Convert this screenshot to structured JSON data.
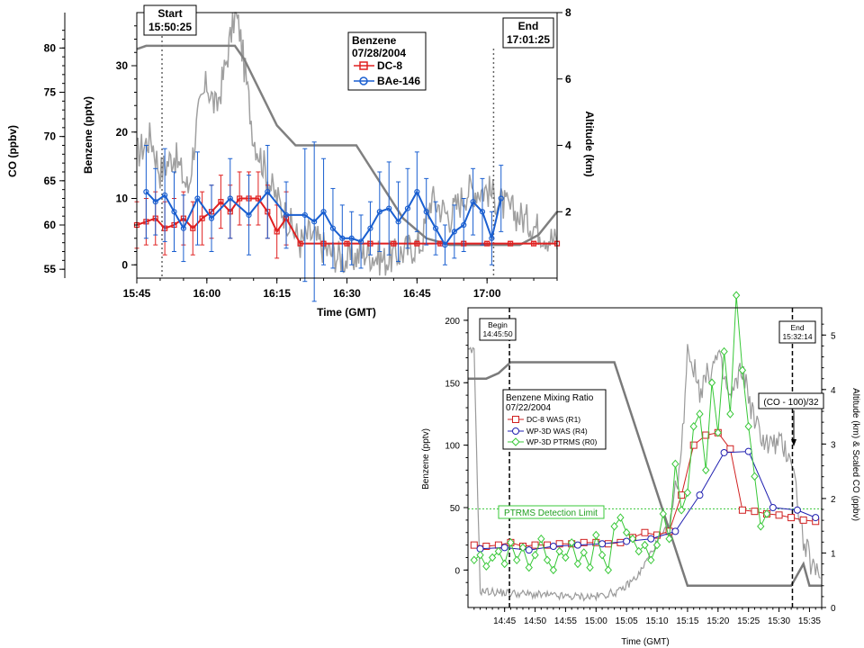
{
  "chart_data": [
    {
      "type": "line",
      "xlabel": "Time (GMT)",
      "ylabel_left_outer": "CO (ppbv)",
      "ylabel_left": "Benzene (pptv)",
      "ylabel_right": "Altitude (km)",
      "x_ticks": [
        "15:45",
        "16:00",
        "16:15",
        "16:30",
        "16:45",
        "17:00"
      ],
      "xlim_minutes": [
        945,
        1035
      ],
      "co_ticks": [
        "80",
        "75",
        "70",
        "65",
        "60",
        "55"
      ],
      "co_ylim": [
        54,
        84
      ],
      "benzene_ticks": [
        "0",
        "10",
        "20",
        "30"
      ],
      "benzene_ylim": [
        -2,
        38
      ],
      "altitude_ticks": [
        "2",
        "4",
        "6",
        "8"
      ],
      "altitude_ylim": [
        0,
        8
      ],
      "legend": {
        "title": "Benzene",
        "date": "07/28/2004",
        "entries": [
          "DC-8",
          "BAe-146"
        ]
      },
      "annotations": [
        {
          "title": "Start",
          "time": "15:50:25",
          "x_min": 950.4
        },
        {
          "title": "End",
          "time": "17:01:25",
          "x_min": 1021.4
        }
      ],
      "series": [
        {
          "name": "DC-8",
          "color": "#e02020",
          "marker": "square",
          "x": [
            945,
            947,
            949,
            951,
            953,
            955,
            957,
            959,
            961,
            963,
            965,
            967,
            969,
            971,
            973,
            975,
            977,
            980,
            985,
            990,
            995,
            1000,
            1005,
            1010,
            1015,
            1020,
            1025,
            1030,
            1035
          ],
          "y": [
            6,
            6.5,
            7,
            5.5,
            6,
            7,
            5.5,
            7,
            8,
            9.5,
            8,
            10,
            10,
            10,
            8,
            5,
            7,
            3.2,
            3.2,
            3.2,
            3.2,
            3.2,
            3.2,
            3.2,
            3.2,
            3.2,
            3.2,
            3.2,
            3.2
          ],
          "err": [
            3.5,
            3.5,
            4,
            4,
            4,
            4,
            4,
            4,
            4,
            4,
            4,
            4,
            4,
            4,
            4,
            4,
            4,
            0.3,
            0.3,
            0.3,
            0.3,
            0.3,
            0.3,
            0.3,
            0.3,
            0.3,
            0.3,
            0.3,
            0.3
          ]
        },
        {
          "name": "BAe-146",
          "color": "#1a5fd0",
          "marker": "circle",
          "x": [
            947,
            949,
            951,
            953,
            955,
            958,
            961,
            965,
            969,
            973,
            977,
            981,
            983,
            985,
            987,
            989,
            991,
            993,
            995,
            997,
            999,
            1001,
            1003,
            1005,
            1007,
            1009,
            1011,
            1013,
            1015,
            1017,
            1019,
            1021,
            1023
          ],
          "y": [
            11,
            9.5,
            10.5,
            8,
            5.5,
            10,
            7,
            10,
            7.5,
            11,
            7.5,
            7.5,
            6.5,
            8,
            5.5,
            4,
            4,
            3.5,
            5.5,
            8,
            8.5,
            6.5,
            8.5,
            11,
            8,
            5.5,
            3,
            5,
            6,
            9.5,
            8,
            4,
            10
          ],
          "err": [
            7,
            5,
            7,
            6,
            5,
            7,
            5,
            6,
            6,
            7,
            5,
            10,
            12,
            8,
            6,
            5,
            4,
            4,
            4,
            6,
            7,
            6,
            6,
            6,
            5,
            4,
            3,
            4,
            4,
            5,
            5,
            4,
            5
          ]
        }
      ]
    },
    {
      "type": "line",
      "xlabel": "Time (GMT)",
      "ylabel_left": "Benzene (pptv)",
      "ylabel_right": "Altitude (km) & Scaled CO (ppbv)",
      "x_ticks": [
        "14:45",
        "14:50",
        "14:55",
        "15:00",
        "15:05",
        "15:10",
        "15:15",
        "15:20",
        "15:25",
        "15:30",
        "15:35"
      ],
      "xlim_minutes": [
        879,
        937
      ],
      "y_ticks": [
        "0",
        "50",
        "100",
        "150",
        "200"
      ],
      "ylim": [
        -30,
        210
      ],
      "alt_ticks": [
        "0",
        "1",
        "2",
        "3",
        "4",
        "5"
      ],
      "alt_ylim": [
        0,
        5.5
      ],
      "legend": {
        "title": "Benzene Mixing Ratio",
        "date": "07/22/2004",
        "entries": [
          "DC-8 WAS (R1)",
          "WP-3D WAS (R4)",
          "WP-3D PTRMS (R0)"
        ]
      },
      "annotations": [
        {
          "title": "Begin",
          "time": "14:45:50",
          "x_min": 885.8
        },
        {
          "title": "End",
          "time": "15:32:14",
          "x_min": 932.2
        },
        {
          "label": "(CO - 100)/32"
        },
        {
          "label": "PTRMS Detection Limit",
          "y": 49
        }
      ],
      "series": [
        {
          "name": "DC-8 WAS (R1)",
          "color": "#d02020",
          "marker": "square",
          "x": [
            880,
            882,
            884,
            886,
            888,
            890,
            892,
            894,
            896,
            898,
            900,
            902,
            904,
            906,
            908,
            910,
            912,
            914,
            916,
            918,
            920,
            922,
            924,
            926,
            928,
            930,
            932,
            934,
            936
          ],
          "y": [
            20,
            19,
            20,
            22,
            19,
            20,
            20,
            21,
            21,
            22,
            22,
            21,
            22,
            26,
            30,
            28,
            31,
            60,
            100,
            108,
            110,
            97,
            48,
            47,
            45,
            44,
            42,
            40,
            39
          ]
        },
        {
          "name": "WP-3D WAS (R4)",
          "color": "#2020b0",
          "marker": "circle",
          "x": [
            881,
            885,
            889,
            893,
            897,
            901,
            905,
            909,
            913,
            917,
            921,
            925,
            929,
            933,
            936
          ],
          "y": [
            17,
            18,
            16,
            19,
            20,
            21,
            23,
            25,
            31,
            60,
            94,
            95,
            50,
            48,
            42
          ]
        },
        {
          "name": "WP-3D PTRMS (R0)",
          "color": "#38c838",
          "marker": "diamond",
          "x": [
            880,
            881,
            882,
            883,
            884,
            885,
            886,
            887,
            888,
            889,
            890,
            891,
            892,
            893,
            894,
            895,
            896,
            897,
            898,
            899,
            900,
            901,
            902,
            903,
            904,
            905,
            906,
            907,
            908,
            909,
            910,
            911,
            912,
            913,
            914,
            915,
            916,
            917,
            918,
            919,
            920,
            921,
            922,
            923,
            924,
            925,
            926,
            927,
            928
          ],
          "y": [
            8,
            12,
            3,
            10,
            15,
            5,
            22,
            8,
            18,
            2,
            12,
            25,
            8,
            0,
            15,
            10,
            22,
            5,
            14,
            2,
            28,
            12,
            0,
            35,
            42,
            30,
            25,
            15,
            20,
            8,
            20,
            45,
            25,
            85,
            48,
            62,
            115,
            125,
            80,
            150,
            110,
            175,
            125,
            220,
            160,
            115,
            75,
            35,
            45
          ]
        }
      ]
    }
  ]
}
